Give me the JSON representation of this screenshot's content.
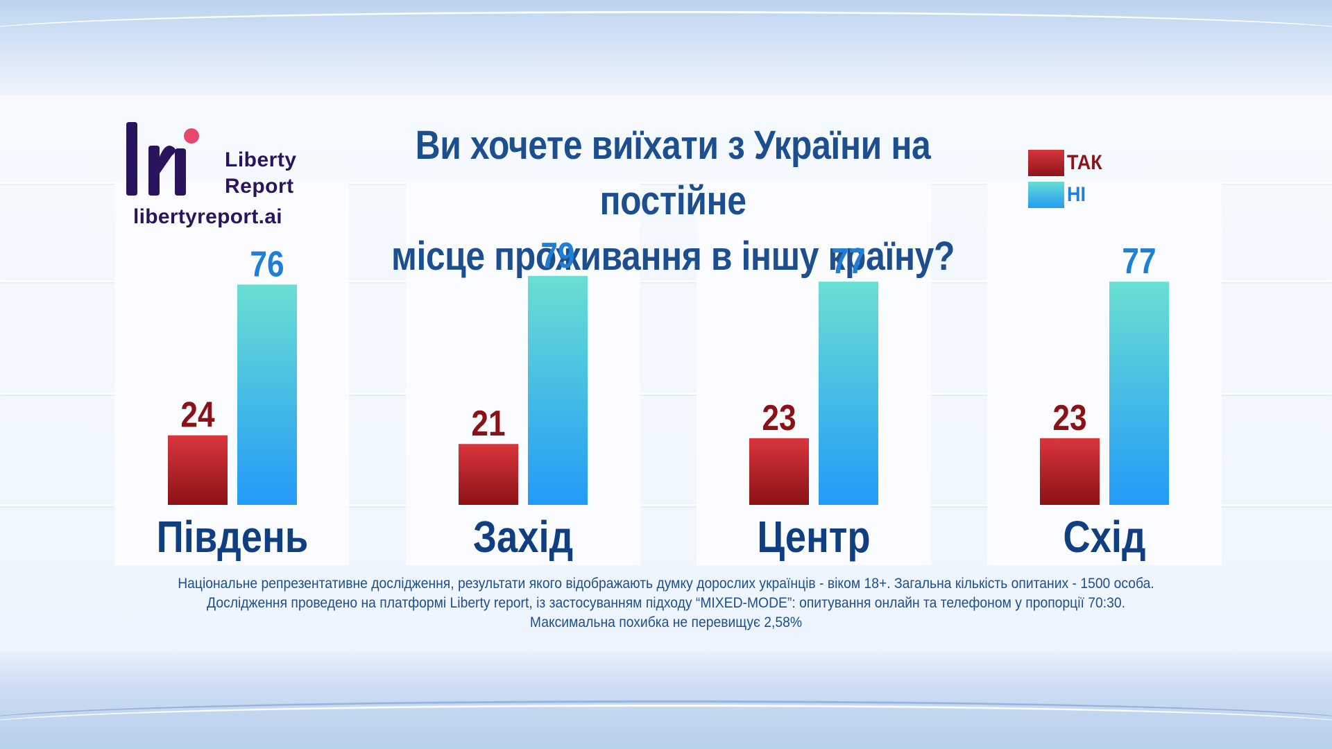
{
  "brand": {
    "name_line1": "Liberty",
    "name_line2": "Report",
    "url": "libertyreport.ai",
    "colors": {
      "dark": "#2a145e",
      "accent": "#e8486b"
    }
  },
  "title": {
    "line1": "Ви хочете виїхати з України на постійне",
    "line2": "місце проживання в іншу країну?"
  },
  "legend": {
    "yes": "ТАК",
    "no": "НІ"
  },
  "chart_data": {
    "type": "bar",
    "title": "Ви хочете виїхати з України на постійне місце проживання в іншу країну?",
    "categories": [
      "Південь",
      "Захід",
      "Центр",
      "Схід"
    ],
    "series": [
      {
        "name": "ТАК",
        "values": [
          24,
          21,
          23,
          23
        ],
        "color": "#b5242a"
      },
      {
        "name": "НІ",
        "values": [
          76,
          79,
          77,
          77
        ],
        "color": "#3aa8f0"
      }
    ],
    "ylim": [
      0,
      100
    ],
    "grid": false,
    "legend_position": "top-right"
  },
  "footnote": {
    "line1": "Національне репрезентативне дослідження, результати якого відображають думку дорослих українців - віком 18+. Загальна кількість опитаних - 1500 особа.",
    "line2": "Дослідження проведено на платформі Liberty report, із застосуванням підходу “MIXED-MODE”: опитування онлайн та телефоном у пропорції 70:30.",
    "line3": "Максимальна похибка не перевищує 2,58%"
  }
}
